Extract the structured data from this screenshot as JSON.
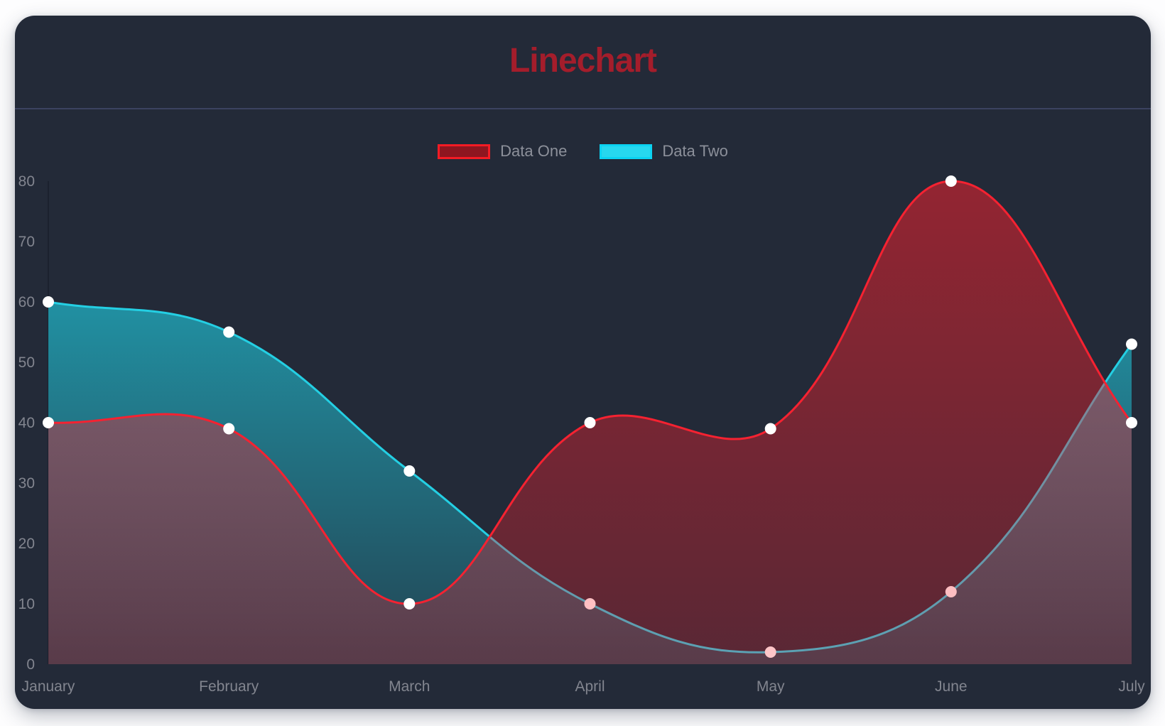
{
  "header": {
    "title": "Linechart"
  },
  "legend": [
    {
      "label": "Data One",
      "fill": "#8e1620",
      "border": "#f41b24"
    },
    {
      "label": "Data Two",
      "fill": "#27d8ef",
      "border": "#0bd3f2"
    }
  ],
  "chart_data": {
    "type": "line",
    "title": "Linechart",
    "x": [
      "January",
      "February",
      "March",
      "April",
      "May",
      "June",
      "July"
    ],
    "series": [
      {
        "name": "Data One",
        "line_color": "#f52231",
        "fill_top": "rgba(250,32,44,0.52)",
        "fill_bottom": "rgba(250,32,44,0.25)",
        "values": [
          40,
          39,
          10,
          40,
          39,
          80,
          40
        ]
      },
      {
        "name": "Data Two",
        "line_color": "#24cfe3",
        "fill_top": "rgba(32,202,222,0.80)",
        "fill_bottom": "rgba(32,202,222,0.16)",
        "values": [
          60,
          55,
          32,
          10,
          2,
          12,
          53
        ]
      }
    ],
    "xlabel": "",
    "ylabel": "",
    "yticks": [
      0,
      10,
      20,
      30,
      40,
      50,
      60,
      70,
      80
    ],
    "ylim": [
      0,
      80
    ],
    "grid": false,
    "legend_position": "top",
    "curve": "smooth",
    "line_tension": 0.4,
    "point_color": "#ffffff",
    "point_radius": 8
  },
  "colors": {
    "page_bg": "#fdfdfe",
    "card_bg": "#232a38",
    "divider": "#3b4260",
    "title": "#a41d2b",
    "tick_text": "#82858f",
    "legend_text": "#8c909a",
    "axis_line": "#1b212e"
  }
}
